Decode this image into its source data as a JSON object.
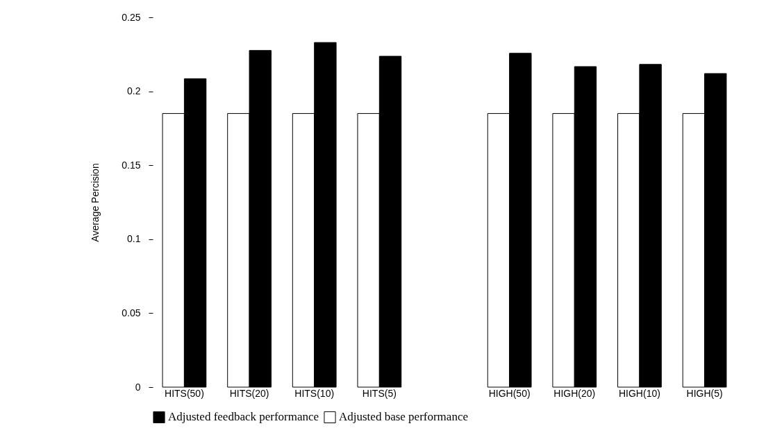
{
  "chart_data": {
    "type": "bar",
    "categories": [
      "HITS(50)",
      "HITS(20)",
      "HITS(10)",
      "HITS(5)",
      null,
      "HIGH(50)",
      "HIGH(20)",
      "HIGH(10)",
      "HIGH(5)"
    ],
    "series": [
      {
        "name": "Adjusted base performance",
        "color": "#ffffff",
        "values": [
          0.185,
          0.185,
          0.185,
          0.185,
          null,
          0.185,
          0.185,
          0.185,
          0.185
        ]
      },
      {
        "name": "Adjusted feedback performance",
        "color": "#000000",
        "values": [
          0.2085,
          0.2276,
          0.233,
          0.2237,
          null,
          0.2257,
          0.2167,
          0.2182,
          0.212
        ]
      }
    ],
    "ylabel": "Average Percision",
    "ylim": [
      0,
      0.25
    ],
    "yticks": [
      0,
      0.05,
      0.1,
      0.15,
      0.2,
      0.25
    ],
    "grid": false,
    "legend": "bottom left"
  }
}
